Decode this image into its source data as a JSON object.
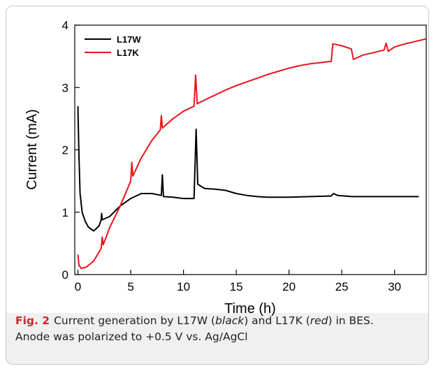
{
  "caption": {
    "label": "Fig. 2",
    "part1": "Current generation by L17W (",
    "black_word": "black",
    "part2": ") and L17K (",
    "red_word": "red",
    "part3": ") in BES.",
    "line2": "Anode was polarized to +0.5 V vs. Ag/AgCl"
  },
  "chart_data": {
    "type": "line",
    "xlabel": "Time (h)",
    "ylabel": "Current (mA)",
    "xlim": [
      -0.3,
      33
    ],
    "ylim": [
      0,
      4
    ],
    "xticks": [
      0,
      5,
      10,
      15,
      20,
      25,
      30
    ],
    "yticks": [
      0,
      1,
      2,
      3,
      4
    ],
    "legend": "top-left",
    "series": [
      {
        "name": "L17W",
        "color": "#000000",
        "points": [
          [
            0,
            2.7
          ],
          [
            0.1,
            1.9
          ],
          [
            0.2,
            1.3
          ],
          [
            0.4,
            1.0
          ],
          [
            0.7,
            0.85
          ],
          [
            1.0,
            0.76
          ],
          [
            1.5,
            0.7
          ],
          [
            2.0,
            0.78
          ],
          [
            2.2,
            0.88
          ],
          [
            2.25,
            0.98
          ],
          [
            2.3,
            0.88
          ],
          [
            3.0,
            0.93
          ],
          [
            4.0,
            1.1
          ],
          [
            5.0,
            1.22
          ],
          [
            6.0,
            1.3
          ],
          [
            7.0,
            1.3
          ],
          [
            7.9,
            1.27
          ],
          [
            8.0,
            1.6
          ],
          [
            8.1,
            1.25
          ],
          [
            9.0,
            1.24
          ],
          [
            10.0,
            1.22
          ],
          [
            11.0,
            1.22
          ],
          [
            11.2,
            2.33
          ],
          [
            11.35,
            1.45
          ],
          [
            12.0,
            1.38
          ],
          [
            13.0,
            1.37
          ],
          [
            14.0,
            1.35
          ],
          [
            15.0,
            1.3
          ],
          [
            16.0,
            1.27
          ],
          [
            17.0,
            1.25
          ],
          [
            18.0,
            1.24
          ],
          [
            20.0,
            1.24
          ],
          [
            22.0,
            1.25
          ],
          [
            24.0,
            1.26
          ],
          [
            24.2,
            1.3
          ],
          [
            24.6,
            1.27
          ],
          [
            26.0,
            1.25
          ],
          [
            28.0,
            1.25
          ],
          [
            30.0,
            1.25
          ],
          [
            32.3,
            1.25
          ]
        ]
      },
      {
        "name": "L17K",
        "color": "#e8141b",
        "points": [
          [
            0,
            0.32
          ],
          [
            0.1,
            0.15
          ],
          [
            0.3,
            0.1
          ],
          [
            0.8,
            0.12
          ],
          [
            1.5,
            0.22
          ],
          [
            2.2,
            0.42
          ],
          [
            2.3,
            0.6
          ],
          [
            2.4,
            0.48
          ],
          [
            3.0,
            0.75
          ],
          [
            4.0,
            1.1
          ],
          [
            5.0,
            1.5
          ],
          [
            5.1,
            1.8
          ],
          [
            5.2,
            1.58
          ],
          [
            6.0,
            1.87
          ],
          [
            7.0,
            2.15
          ],
          [
            7.8,
            2.32
          ],
          [
            7.9,
            2.55
          ],
          [
            8.0,
            2.35
          ],
          [
            9.0,
            2.5
          ],
          [
            10.0,
            2.62
          ],
          [
            11.0,
            2.7
          ],
          [
            11.15,
            3.2
          ],
          [
            11.3,
            2.74
          ],
          [
            12.0,
            2.8
          ],
          [
            13.0,
            2.88
          ],
          [
            14.0,
            2.96
          ],
          [
            15.0,
            3.03
          ],
          [
            16.0,
            3.09
          ],
          [
            17.0,
            3.15
          ],
          [
            18.0,
            3.21
          ],
          [
            19.0,
            3.26
          ],
          [
            20.0,
            3.31
          ],
          [
            21.0,
            3.35
          ],
          [
            22.0,
            3.38
          ],
          [
            23.0,
            3.4
          ],
          [
            24.0,
            3.42
          ],
          [
            24.15,
            3.7
          ],
          [
            25.0,
            3.67
          ],
          [
            25.9,
            3.62
          ],
          [
            26.1,
            3.45
          ],
          [
            27.0,
            3.52
          ],
          [
            28.0,
            3.56
          ],
          [
            29.0,
            3.6
          ],
          [
            29.2,
            3.71
          ],
          [
            29.4,
            3.58
          ],
          [
            30.0,
            3.65
          ],
          [
            31.0,
            3.7
          ],
          [
            32.0,
            3.74
          ],
          [
            33.0,
            3.78
          ]
        ]
      }
    ]
  }
}
